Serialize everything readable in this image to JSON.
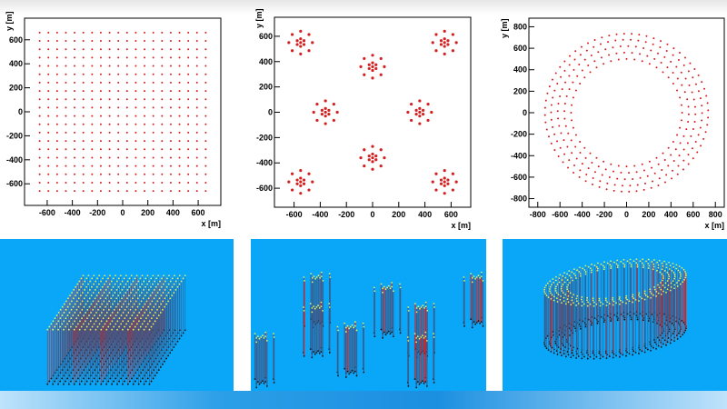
{
  "chart_data": [
    {
      "type": "scatter",
      "layout": "square grid",
      "xlabel": "x [m]",
      "ylabel": "y [m]",
      "xlim": [
        -780,
        780
      ],
      "ylim": [
        -780,
        780
      ],
      "xticks": [
        "-600",
        "-400",
        "-200",
        "0",
        "200",
        "400",
        "600"
      ],
      "yticks": [
        "-600",
        "-400",
        "-200",
        "0",
        "200",
        "400",
        "600"
      ],
      "grid_min": -660,
      "grid_max": 660,
      "grid_count": 20,
      "marker_color": "#d42020"
    },
    {
      "type": "scatter",
      "layout": "clusters",
      "xlabel": "x [m]",
      "ylabel": "y [m]",
      "xlim": [
        -750,
        750
      ],
      "ylim": [
        -750,
        750
      ],
      "xticks": [
        "-600",
        "-400",
        "-200",
        "0",
        "200",
        "400",
        "600"
      ],
      "yticks": [
        "-600",
        "-400",
        "-200",
        "0",
        "200",
        "400",
        "600"
      ],
      "cluster_centers": [
        [
          -550,
          550
        ],
        [
          550,
          550
        ],
        [
          0,
          360
        ],
        [
          -360,
          0
        ],
        [
          360,
          0
        ],
        [
          0,
          -360
        ],
        [
          -550,
          -550
        ],
        [
          550,
          -550
        ]
      ],
      "cluster_offsets": [
        [
          0,
          0
        ],
        [
          0,
          30
        ],
        [
          26,
          15
        ],
        [
          26,
          -15
        ],
        [
          0,
          -30
        ],
        [
          -26,
          -15
        ],
        [
          -26,
          15
        ],
        [
          0,
          90
        ],
        [
          64,
          64
        ],
        [
          90,
          0
        ],
        [
          64,
          -64
        ],
        [
          0,
          -90
        ],
        [
          -64,
          -64
        ],
        [
          -90,
          0
        ],
        [
          -64,
          64
        ]
      ],
      "marker_color": "#d42020"
    },
    {
      "type": "scatter",
      "layout": "annulus",
      "xlabel": "x [m]",
      "ylabel": "y [m]",
      "xlim": [
        -880,
        880
      ],
      "ylim": [
        -880,
        880
      ],
      "xticks": [
        "-800",
        "-600",
        "-400",
        "-200",
        "0",
        "200",
        "400",
        "600",
        "800"
      ],
      "yticks": [
        "-800",
        "-600",
        "-400",
        "-200",
        "0",
        "200",
        "400",
        "600",
        "800"
      ],
      "ring_radii": [
        500,
        560,
        620,
        680,
        735
      ],
      "ring_counts": [
        44,
        50,
        56,
        62,
        68
      ],
      "marker_color": "#d42020"
    }
  ],
  "renders": {
    "background": "#0aa6f7",
    "string_color": "#3a5a8a",
    "highlight_color": "#d42020",
    "top_color": "#e8f060"
  }
}
